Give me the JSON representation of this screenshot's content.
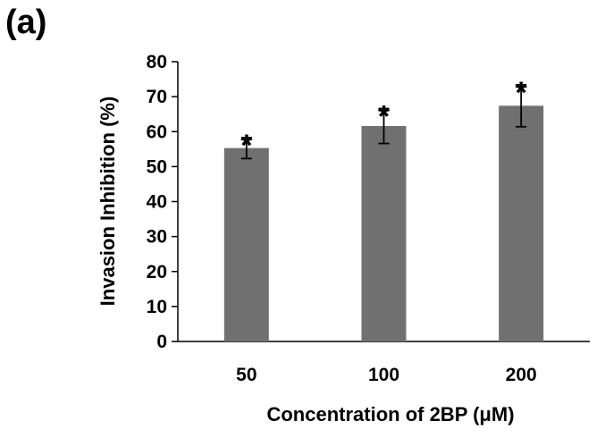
{
  "panel_label": "(a)",
  "chart_data": {
    "type": "bar",
    "categories": [
      "50",
      "100",
      "200"
    ],
    "values": [
      55.3,
      61.6,
      67.4
    ],
    "errors": [
      3.0,
      5.0,
      6.0
    ],
    "annotations": [
      "*",
      "*",
      "*"
    ],
    "xlabel": "Concentration of 2BP (μM)",
    "ylabel": "Invasion Inhibition (%)",
    "ylim": [
      0,
      80
    ],
    "yticks": [
      0,
      10,
      20,
      30,
      40,
      50,
      60,
      70,
      80
    ],
    "grid": false,
    "bar_color": "#707070"
  }
}
